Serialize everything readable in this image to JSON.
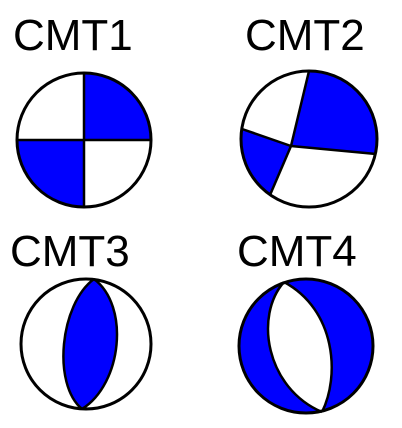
{
  "colors": {
    "compression": "#0000ff",
    "dilatation": "#ffffff",
    "outline": "#000000"
  },
  "mechanisms": [
    {
      "id": "cmt1",
      "label": "CMT1"
    },
    {
      "id": "cmt2",
      "label": "CMT2"
    },
    {
      "id": "cmt3",
      "label": "CMT3"
    },
    {
      "id": "cmt4",
      "label": "CMT4"
    }
  ]
}
